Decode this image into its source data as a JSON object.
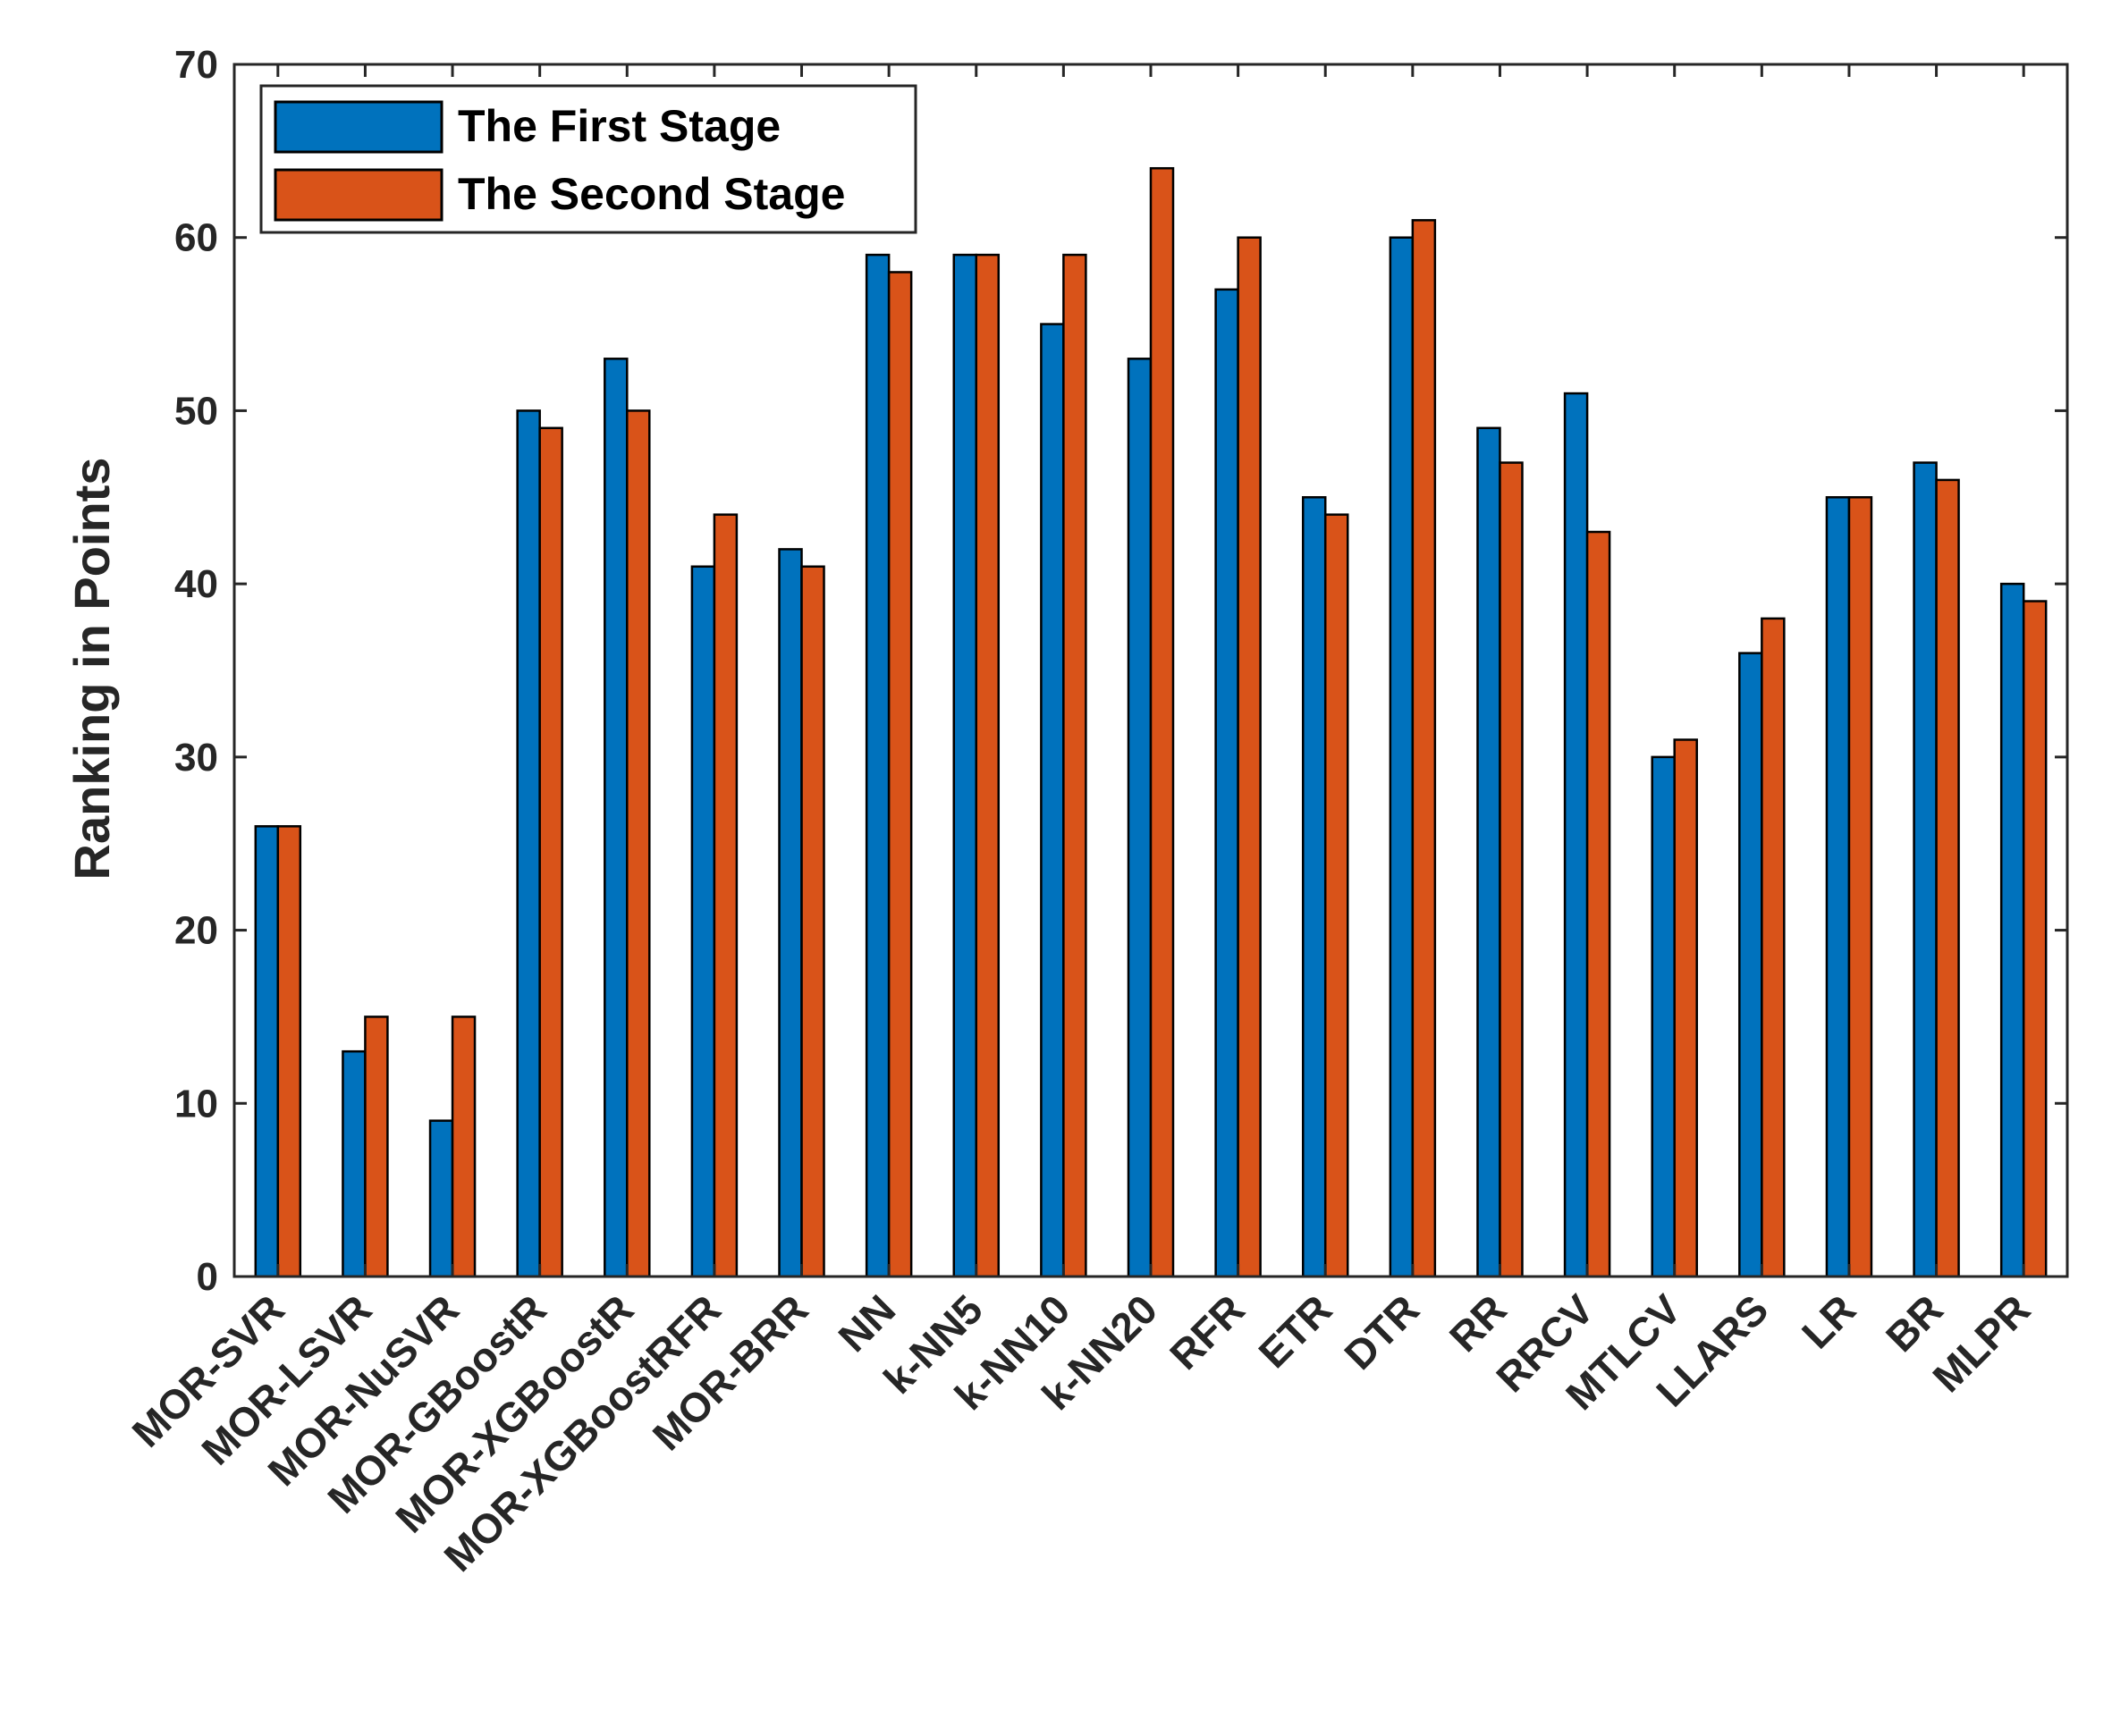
{
  "chart_data": {
    "type": "bar",
    "title": "",
    "xlabel": "",
    "ylabel": "Ranking in Points",
    "ylim": [
      0,
      70
    ],
    "yticks": [
      0,
      10,
      20,
      30,
      40,
      50,
      60,
      70
    ],
    "grid": false,
    "legend_position": "top-left",
    "categories": [
      "MOR-SVR",
      "MOR-LSVR",
      "MOR-NuSVR",
      "MOR-GBoostR",
      "MOR-XGBoostR",
      "MOR-XGBoostRFR",
      "MOR-BRR",
      "NN",
      "k-NN5",
      "k-NN10",
      "k-NN20",
      "RFR",
      "ETR",
      "DTR",
      "RR",
      "RRCV",
      "MTLCV",
      "LLARS",
      "LR",
      "BR",
      "MLPR"
    ],
    "series": [
      {
        "name": "The First Stage",
        "color": "#0072BD",
        "values": [
          26,
          13,
          9,
          50,
          53,
          41,
          42,
          59,
          59,
          55,
          53,
          57,
          45,
          60,
          49,
          51,
          30,
          36,
          45,
          47,
          40
        ]
      },
      {
        "name": "The Second Stage",
        "color": "#D95319",
        "values": [
          26,
          15,
          15,
          49,
          50,
          44,
          41,
          58,
          59,
          59,
          64,
          60,
          44,
          61,
          47,
          43,
          31,
          38,
          45,
          46,
          39
        ]
      }
    ]
  }
}
